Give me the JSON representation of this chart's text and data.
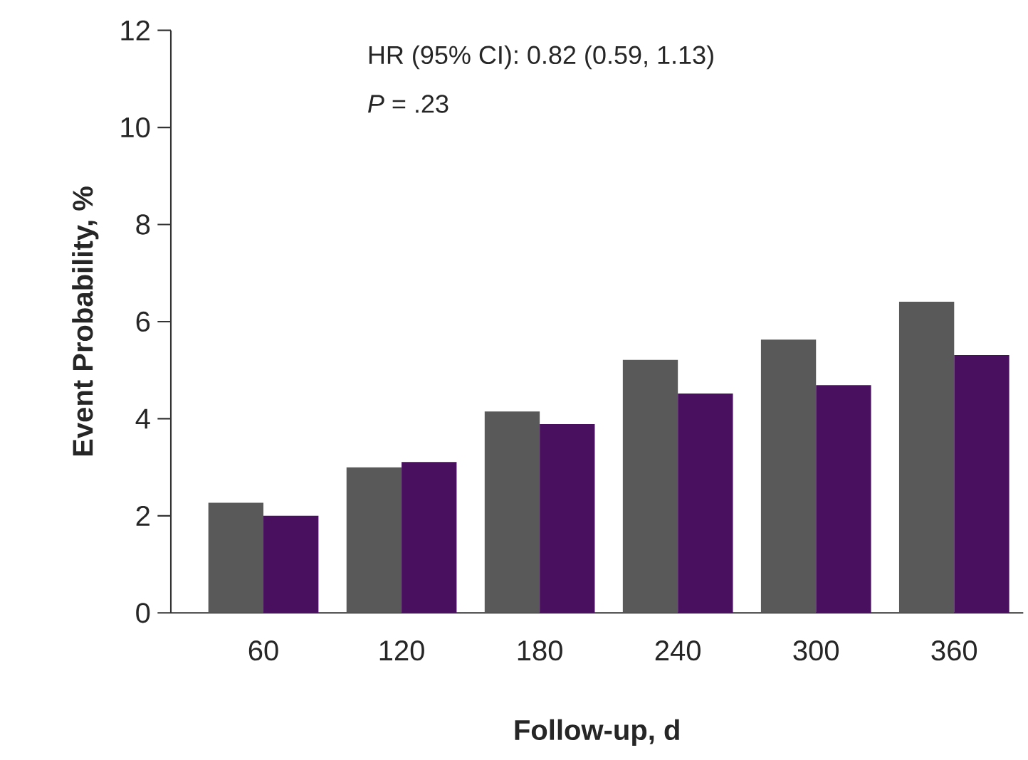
{
  "chart_data": {
    "type": "bar",
    "xlabel": "Follow-up, d",
    "ylabel": "Event Probability, %",
    "categories": [
      "60",
      "120",
      "180",
      "240",
      "300",
      "360"
    ],
    "series": [
      {
        "color": "#595959",
        "values": [
          2.27,
          3.0,
          4.15,
          5.21,
          5.63,
          6.41
        ]
      },
      {
        "color": "#4a1060",
        "values": [
          2.0,
          3.11,
          3.89,
          4.52,
          4.69,
          5.31
        ]
      }
    ],
    "ylim": [
      0,
      12
    ],
    "yticks": [
      0,
      2,
      4,
      6,
      8,
      10,
      12
    ],
    "annotations": [
      "HR (95% CI): 0.82 (0.59, 1.13)",
      "*P* = .23"
    ]
  }
}
